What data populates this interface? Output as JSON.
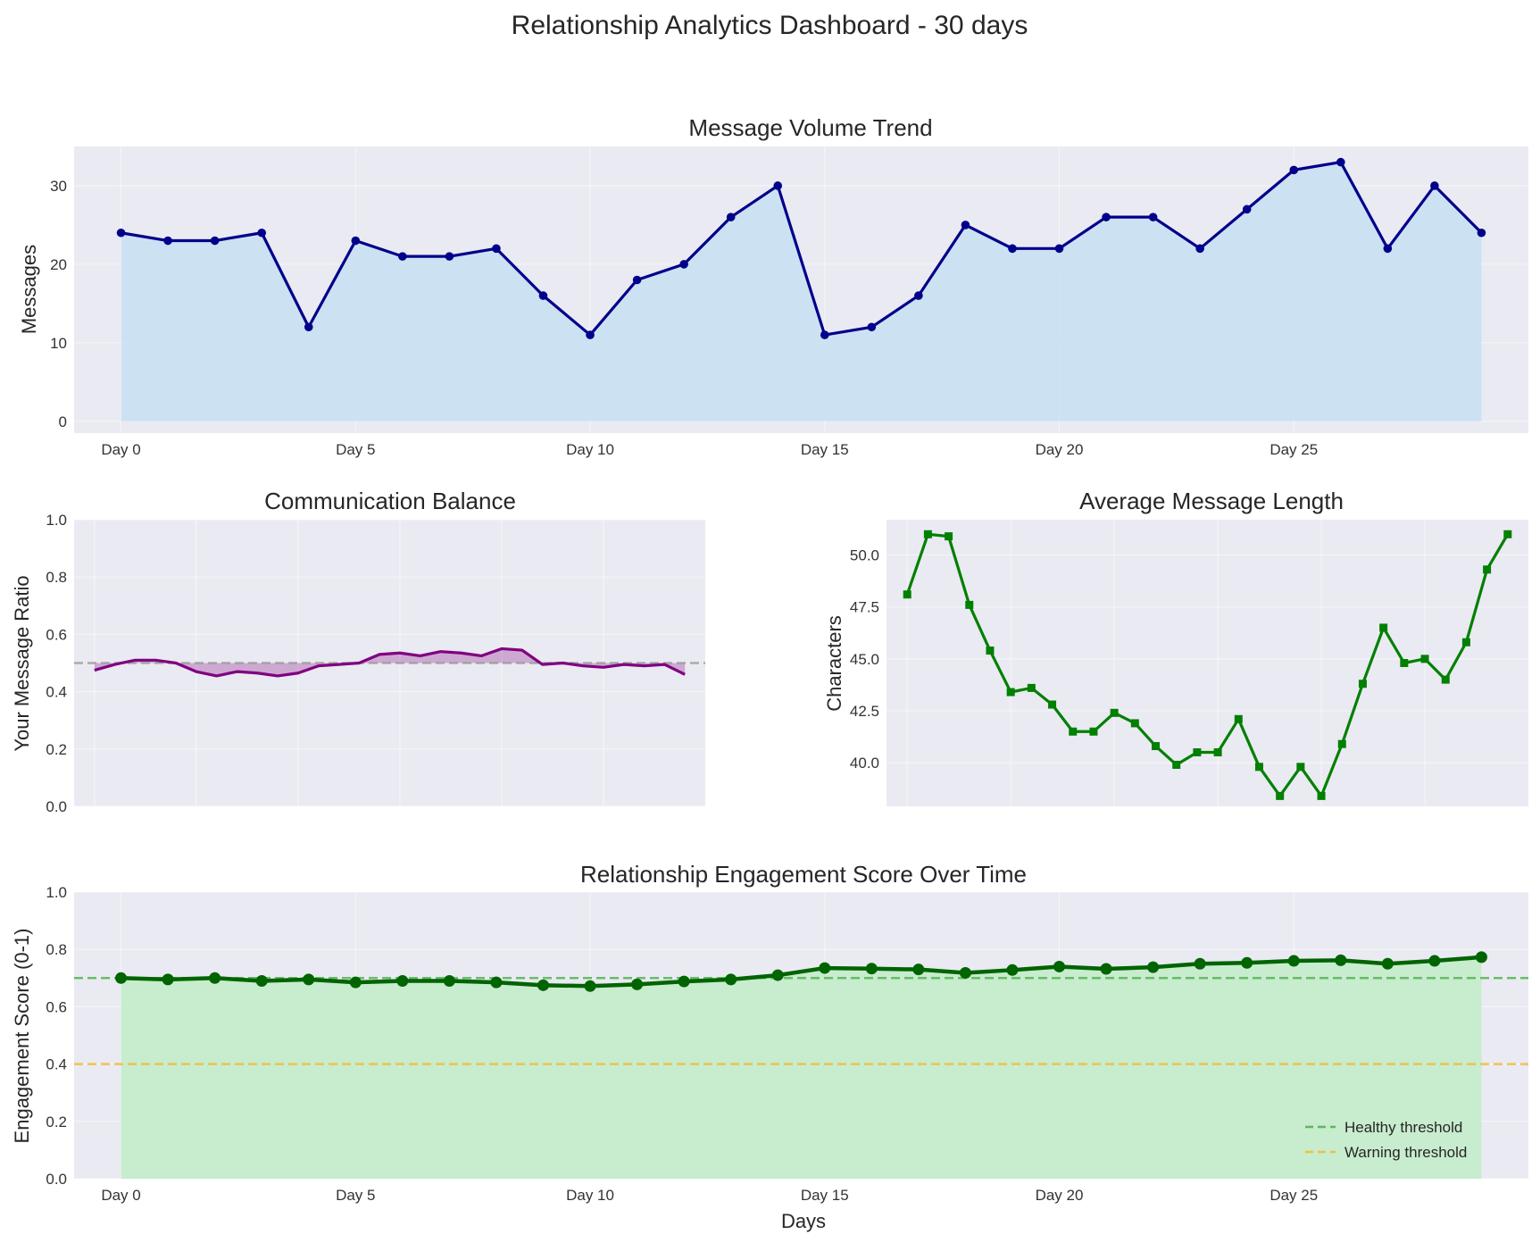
{
  "figure": {
    "title": "Relationship Analytics Dashboard - 30 days"
  },
  "chart_data": [
    {
      "id": "volume",
      "type": "line",
      "title": "Message Volume Trend",
      "xlabel": "",
      "ylabel": "Messages",
      "x": [
        0,
        1,
        2,
        3,
        4,
        5,
        6,
        7,
        8,
        9,
        10,
        11,
        12,
        13,
        14,
        15,
        16,
        17,
        18,
        19,
        20,
        21,
        22,
        23,
        24,
        25,
        26,
        27,
        28,
        29
      ],
      "xticks": [
        0,
        5,
        10,
        15,
        20,
        25
      ],
      "xtick_labels": [
        "Day 0",
        "Day 5",
        "Day 10",
        "Day 15",
        "Day 20",
        "Day 25"
      ],
      "xlim": [
        -1,
        30
      ],
      "ylim": [
        -1.5,
        35
      ],
      "yticks": [
        0,
        10,
        20,
        30
      ],
      "ytick_labels": [
        "0",
        "10",
        "20",
        "30"
      ],
      "series": [
        {
          "values": [
            24,
            23,
            23,
            24,
            12,
            23,
            21,
            21,
            22,
            16,
            11,
            18,
            20,
            26,
            30,
            11,
            12,
            16,
            25,
            22,
            22,
            26,
            26,
            22,
            27,
            32,
            33,
            22,
            30,
            24
          ],
          "color": "#00008b",
          "fill": "#c7dff2",
          "marker": "circle"
        }
      ],
      "grid": true
    },
    {
      "id": "balance",
      "type": "area",
      "title": "Communication Balance",
      "xlabel": "",
      "ylabel": "Your Message Ratio",
      "x": [
        0,
        1,
        2,
        3,
        4,
        5,
        6,
        7,
        8,
        9,
        10,
        11,
        12,
        13,
        14,
        15,
        16,
        17,
        18,
        19,
        20,
        21,
        22,
        23,
        24,
        25,
        26,
        27,
        28,
        29
      ],
      "xlim": [
        -1,
        30
      ],
      "ylim": [
        0,
        1
      ],
      "yticks": [
        0,
        0.2,
        0.4,
        0.6,
        0.8,
        1.0
      ],
      "ytick_labels": [
        "0.0",
        "0.2",
        "0.4",
        "0.6",
        "0.8",
        "1.0"
      ],
      "series": [
        {
          "values": [
            0.475,
            0.495,
            0.51,
            0.51,
            0.5,
            0.47,
            0.455,
            0.47,
            0.465,
            0.455,
            0.465,
            0.49,
            0.495,
            0.5,
            0.53,
            0.535,
            0.525,
            0.54,
            0.535,
            0.525,
            0.55,
            0.545,
            0.495,
            0.5,
            0.49,
            0.485,
            0.495,
            0.49,
            0.495,
            0.46
          ],
          "color": "#800080",
          "fill": "#800080",
          "baseline": 0.5
        }
      ],
      "reference": {
        "y": 0.5,
        "color": "#999999"
      },
      "grid": true
    },
    {
      "id": "length",
      "type": "line",
      "title": "Average Message Length",
      "xlabel": "",
      "ylabel": "Characters",
      "x": [
        0,
        1,
        2,
        3,
        4,
        5,
        6,
        7,
        8,
        9,
        10,
        11,
        12,
        13,
        14,
        15,
        16,
        17,
        18,
        19,
        20,
        21,
        22,
        23,
        24,
        25,
        26,
        27,
        28,
        29
      ],
      "xlim": [
        -1,
        30
      ],
      "ylim": [
        37.9,
        51.7
      ],
      "yticks": [
        40.0,
        42.5,
        45.0,
        47.5,
        50.0
      ],
      "ytick_labels": [
        "40.0",
        "42.5",
        "45.0",
        "47.5",
        "50.0"
      ],
      "series": [
        {
          "values": [
            48.1,
            51.0,
            50.9,
            47.6,
            45.4,
            43.4,
            43.6,
            42.8,
            41.5,
            41.5,
            42.4,
            41.9,
            40.8,
            39.9,
            40.5,
            40.5,
            42.1,
            39.8,
            38.4,
            39.8,
            38.4,
            40.9,
            43.8,
            46.5,
            44.8,
            45.0,
            44.0,
            45.8,
            49.3,
            51.0
          ],
          "color": "#008000",
          "marker": "square"
        }
      ],
      "grid": true
    },
    {
      "id": "engagement",
      "type": "line",
      "title": "Relationship Engagement Score Over Time",
      "xlabel": "Days",
      "ylabel": "Engagement Score (0-1)",
      "x": [
        0,
        1,
        2,
        3,
        4,
        5,
        6,
        7,
        8,
        9,
        10,
        11,
        12,
        13,
        14,
        15,
        16,
        17,
        18,
        19,
        20,
        21,
        22,
        23,
        24,
        25,
        26,
        27,
        28,
        29
      ],
      "xticks": [
        0,
        5,
        10,
        15,
        20,
        25
      ],
      "xtick_labels": [
        "Day 0",
        "Day 5",
        "Day 10",
        "Day 15",
        "Day 20",
        "Day 25"
      ],
      "xlim": [
        -1,
        30
      ],
      "ylim": [
        0,
        1
      ],
      "yticks": [
        0,
        0.2,
        0.4,
        0.6,
        0.8,
        1.0
      ],
      "ytick_labels": [
        "0.0",
        "0.2",
        "0.4",
        "0.6",
        "0.8",
        "1.0"
      ],
      "series": [
        {
          "values": [
            0.7,
            0.695,
            0.7,
            0.69,
            0.695,
            0.685,
            0.69,
            0.69,
            0.685,
            0.675,
            0.672,
            0.678,
            0.688,
            0.695,
            0.71,
            0.735,
            0.733,
            0.73,
            0.718,
            0.728,
            0.74,
            0.732,
            0.738,
            0.75,
            0.753,
            0.76,
            0.762,
            0.75,
            0.76,
            0.773
          ],
          "color": "#006400",
          "fill": "#c4ecca",
          "marker": "circle"
        }
      ],
      "thresholds": [
        {
          "name": "Healthy threshold",
          "y": 0.7,
          "color": "#5cb85c"
        },
        {
          "name": "Warning threshold",
          "y": 0.4,
          "color": "#f0c040"
        }
      ],
      "legend": "bottom-right",
      "grid": true
    }
  ]
}
